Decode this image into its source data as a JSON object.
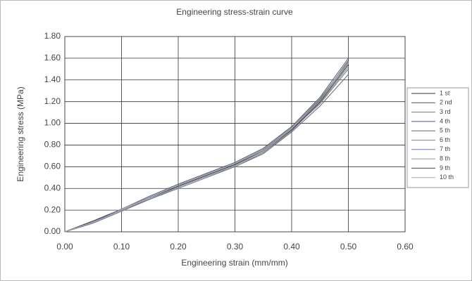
{
  "chart_data": {
    "type": "line",
    "title": "Engineering stress-strain curve",
    "x_label": "Engineering strain (mm/mm)",
    "y_label": "Engineering stress (MPa)",
    "x": [
      0,
      0.05,
      0.1,
      0.15,
      0.2,
      0.25,
      0.3,
      0.35,
      0.4,
      0.45,
      0.5
    ],
    "xlim": [
      0,
      0.6
    ],
    "xticks": [
      {
        "value": 0,
        "label": "0.00"
      },
      {
        "value": 0.1,
        "label": "0.10"
      },
      {
        "value": 0.2,
        "label": "0.20"
      },
      {
        "value": 0.3,
        "label": "0.30"
      },
      {
        "value": 0.4,
        "label": "0.40"
      },
      {
        "value": 0.5,
        "label": "0.50"
      },
      {
        "value": 0.6,
        "label": "0.60"
      }
    ],
    "ylim": [
      0,
      1.8
    ],
    "yticks": [
      {
        "value": 0,
        "label": "0.00"
      },
      {
        "value": 0.2,
        "label": "0.20"
      },
      {
        "value": 0.4,
        "label": "0.40"
      },
      {
        "value": 0.6,
        "label": "0.60"
      },
      {
        "value": 0.8,
        "label": "0.80"
      },
      {
        "value": 1.0,
        "label": "1.00"
      },
      {
        "value": 1.2,
        "label": "1.20"
      },
      {
        "value": 1.4,
        "label": "1.40"
      },
      {
        "value": 1.6,
        "label": "1.60"
      },
      {
        "value": 1.8,
        "label": "1.80"
      }
    ],
    "grid": true,
    "legend": "right",
    "series": [
      {
        "name": "1 st",
        "color": "#333333",
        "values": [
          0,
          0.09,
          0.2,
          0.31,
          0.42,
          0.52,
          0.62,
          0.75,
          0.95,
          1.2,
          1.55
        ]
      },
      {
        "name": "2 nd",
        "color": "#555555",
        "values": [
          0,
          0.1,
          0.21,
          0.32,
          0.43,
          0.53,
          0.63,
          0.76,
          0.96,
          1.22,
          1.58
        ]
      },
      {
        "name": "3 rd",
        "color": "#777777",
        "values": [
          0,
          0.08,
          0.19,
          0.3,
          0.41,
          0.51,
          0.61,
          0.74,
          0.94,
          1.18,
          1.5
        ]
      },
      {
        "name": "4 th",
        "color": "#4a5a8a",
        "values": [
          0,
          0.1,
          0.21,
          0.33,
          0.44,
          0.54,
          0.64,
          0.77,
          0.97,
          1.24,
          1.6
        ]
      },
      {
        "name": "5 th",
        "color": "#666666",
        "values": [
          0,
          0.09,
          0.2,
          0.3,
          0.41,
          0.51,
          0.6,
          0.72,
          0.92,
          1.16,
          1.45
        ]
      },
      {
        "name": "6 th",
        "color": "#888888",
        "values": [
          0,
          0.09,
          0.2,
          0.31,
          0.42,
          0.52,
          0.62,
          0.75,
          0.95,
          1.21,
          1.56
        ]
      },
      {
        "name": "7 th",
        "color": "#6f7fa8",
        "values": [
          0,
          0.08,
          0.19,
          0.3,
          0.4,
          0.5,
          0.6,
          0.73,
          0.93,
          1.19,
          1.52
        ]
      },
      {
        "name": "8 th",
        "color": "#999999",
        "values": [
          0,
          0.09,
          0.21,
          0.32,
          0.43,
          0.53,
          0.63,
          0.76,
          0.96,
          1.23,
          1.57
        ]
      },
      {
        "name": "9 th",
        "color": "#444444",
        "values": [
          0,
          0.1,
          0.2,
          0.31,
          0.42,
          0.52,
          0.62,
          0.74,
          0.94,
          1.2,
          1.54
        ]
      },
      {
        "name": "10 th",
        "color": "#aaaaaa",
        "values": [
          0,
          0.09,
          0.2,
          0.31,
          0.41,
          0.51,
          0.61,
          0.74,
          0.95,
          1.21,
          1.55
        ]
      }
    ]
  }
}
